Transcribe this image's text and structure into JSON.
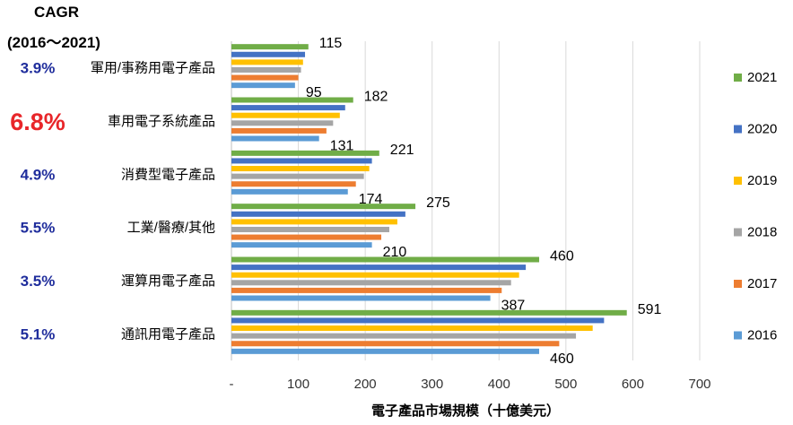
{
  "cagr_header": {
    "line1": "CAGR",
    "line2": "(2016～2021)"
  },
  "colors": {
    "2021": "#70ad47",
    "2020": "#4472c4",
    "2019": "#ffc000",
    "2018": "#a5a5a5",
    "2017": "#ed7d31",
    "2016": "#5b9bd5",
    "cagr_default": "#1f2d9c",
    "cagr_highlight": "#e8262a"
  },
  "chart_data": {
    "type": "bar",
    "orientation": "horizontal",
    "categories": [
      "軍用/事務用電子產品",
      "車用電子系統產品",
      "消費型電子產品",
      "工業/醫療/其他",
      "運算用電子產品",
      "通訊用電子產品"
    ],
    "cagr": [
      "3.9%",
      "6.8%",
      "4.9%",
      "5.5%",
      "3.5%",
      "5.1%"
    ],
    "cagr_highlight_index": 1,
    "series": [
      {
        "name": "2021",
        "values": [
          115,
          182,
          221,
          275,
          460,
          591
        ]
      },
      {
        "name": "2020",
        "values": [
          110,
          170,
          210,
          260,
          440,
          557
        ]
      },
      {
        "name": "2019",
        "values": [
          107,
          162,
          206,
          248,
          430,
          540
        ]
      },
      {
        "name": "2018",
        "values": [
          104,
          152,
          198,
          236,
          418,
          515
        ]
      },
      {
        "name": "2017",
        "values": [
          100,
          142,
          186,
          224,
          404,
          490
        ]
      },
      {
        "name": "2016",
        "values": [
          95,
          131,
          174,
          210,
          387,
          460
        ]
      }
    ],
    "data_labels": {
      "2021": [
        115,
        182,
        221,
        275,
        460,
        591
      ],
      "2016": [
        95,
        131,
        174,
        210,
        387,
        460
      ]
    },
    "xaxis": {
      "ticks": [
        "-",
        "100",
        "200",
        "300",
        "400",
        "500",
        "600",
        "700"
      ],
      "tick_values": [
        0,
        100,
        200,
        300,
        400,
        500,
        600,
        700
      ],
      "label": "電子產品市場規模（十億美元）"
    },
    "xlim": [
      0,
      700
    ],
    "grid": true,
    "legend_position": "right",
    "legend_order": [
      "2021",
      "2020",
      "2019",
      "2018",
      "2017",
      "2016"
    ]
  }
}
